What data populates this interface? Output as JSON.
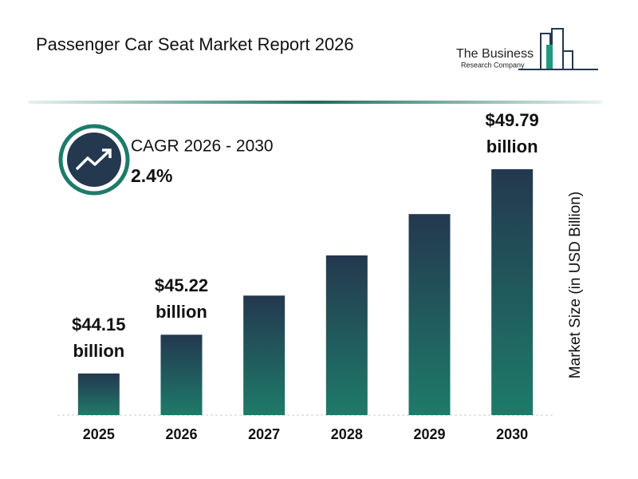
{
  "title": "Passenger Car Seat Market Report 2026",
  "logo": {
    "line1": "The Business",
    "line2": "Research Company"
  },
  "cagr": {
    "label": "CAGR 2026 - 2030",
    "value": "2.4%"
  },
  "chart_data": {
    "type": "bar",
    "categories": [
      "2025",
      "2026",
      "2027",
      "2028",
      "2029",
      "2030"
    ],
    "values": [
      44.15,
      45.22,
      46.3,
      47.41,
      48.55,
      49.79
    ],
    "value_labels": [
      "$44.15 billion",
      "$45.22 billion",
      null,
      null,
      null,
      "$49.79 billion"
    ],
    "y_label": "Market Size (in USD Billion)",
    "ylim": [
      43,
      51
    ],
    "color_top": "#24384f",
    "color_bottom": "#1e7b69"
  }
}
